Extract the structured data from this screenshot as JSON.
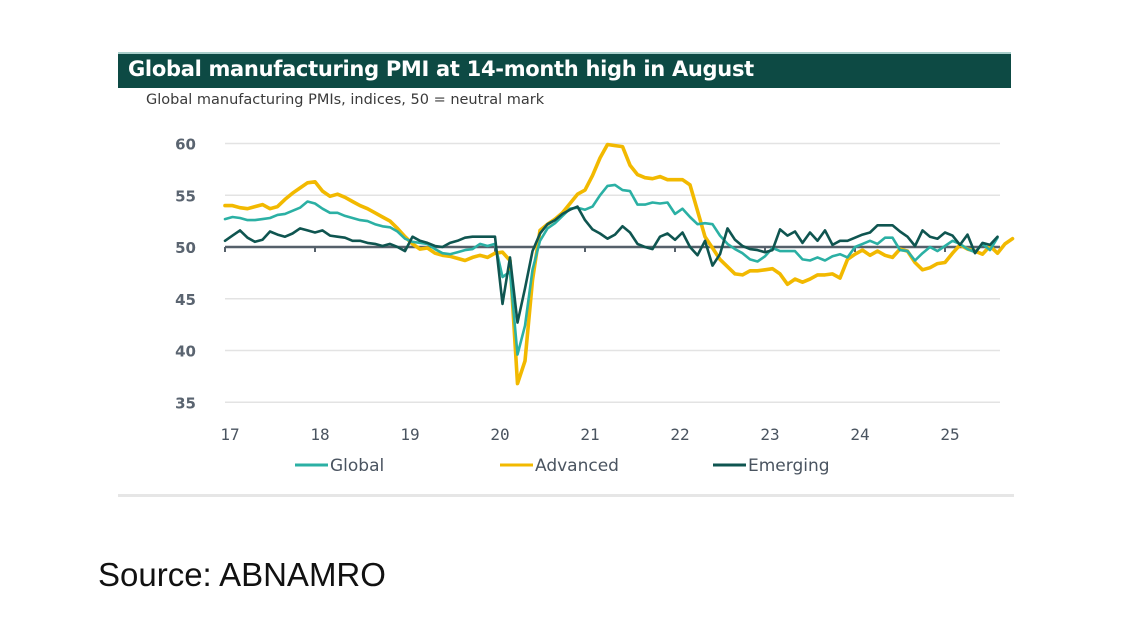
{
  "title": "Global manufacturing PMI at 14-month high in August",
  "subtitle": "Global manufacturing PMIs, indices, 50 = neutral mark",
  "source": "Source: ABNAMRO",
  "colors": {
    "title_bg": "#0d4a44",
    "global": "#2bb0a4",
    "advanced": "#f2b900",
    "emerging": "#0f5550",
    "neutral_line": "#55606a",
    "grid": "#e3e3e3"
  },
  "chart_data": {
    "type": "line",
    "title": "Global manufacturing PMI at 14-month high in August",
    "subtitle": "Global manufacturing PMIs, indices, 50 = neutral mark",
    "xlabel": "",
    "ylabel": "",
    "ylim": [
      35,
      60
    ],
    "yticks": [
      60,
      55,
      50,
      45,
      40,
      35
    ],
    "xticks": [
      "17",
      "18",
      "19",
      "20",
      "21",
      "22",
      "23",
      "24",
      "25"
    ],
    "x_start": "2017-01",
    "frequency": "monthly",
    "grid": true,
    "reference_line": 50,
    "legend": "bottom",
    "series": [
      {
        "name": "Global",
        "values": [
          52.7,
          52.9,
          52.8,
          52.6,
          52.6,
          52.7,
          52.8,
          53.1,
          53.2,
          53.5,
          53.8,
          54.4,
          54.2,
          53.7,
          53.3,
          53.3,
          53.0,
          52.8,
          52.6,
          52.5,
          52.2,
          52.0,
          51.9,
          51.5,
          50.8,
          50.5,
          50.4,
          50.3,
          49.8,
          49.4,
          49.3,
          49.5,
          49.7,
          49.8,
          50.3,
          50.1,
          50.3,
          47.1,
          47.6,
          39.6,
          42.4,
          47.8,
          50.6,
          51.8,
          52.3,
          53.0,
          53.7,
          53.8,
          53.6,
          53.9,
          55.0,
          55.9,
          56.0,
          55.5,
          55.4,
          54.1,
          54.1,
          54.3,
          54.2,
          54.3,
          53.2,
          53.7,
          52.9,
          52.2,
          52.3,
          52.2,
          51.1,
          50.3,
          49.8,
          49.4,
          48.8,
          48.6,
          49.1,
          49.9,
          49.6,
          49.6,
          49.6,
          48.8,
          48.7,
          49.0,
          48.7,
          49.1,
          49.3,
          49.0,
          50.0,
          50.3,
          50.6,
          50.3,
          50.9,
          50.9,
          49.7,
          49.6,
          48.7,
          49.4,
          50.0,
          49.6,
          50.1,
          50.6,
          50.3,
          49.8,
          49.5,
          50.3,
          49.7,
          50.9
        ]
      },
      {
        "name": "Advanced",
        "values": [
          54.0,
          54.0,
          53.8,
          53.7,
          53.9,
          54.1,
          53.7,
          53.9,
          54.6,
          55.2,
          55.7,
          56.2,
          56.3,
          55.4,
          54.9,
          55.1,
          54.8,
          54.4,
          54.0,
          53.7,
          53.3,
          52.9,
          52.5,
          51.8,
          51.0,
          50.3,
          49.8,
          49.9,
          49.4,
          49.2,
          49.1,
          48.9,
          48.7,
          49.0,
          49.2,
          49.0,
          49.4,
          49.5,
          48.7,
          36.8,
          39.0,
          46.8,
          51.6,
          52.2,
          52.7,
          53.3,
          54.2,
          55.1,
          55.5,
          56.9,
          58.6,
          59.9,
          59.8,
          59.7,
          57.9,
          57.0,
          56.7,
          56.6,
          56.8,
          56.5,
          56.5,
          56.5,
          56.0,
          53.5,
          51.0,
          49.9,
          48.8,
          48.1,
          47.4,
          47.3,
          47.7,
          47.7,
          47.8,
          47.9,
          47.4,
          46.4,
          46.9,
          46.6,
          46.9,
          47.3,
          47.3,
          47.4,
          47.0,
          48.8,
          49.3,
          49.7,
          49.2,
          49.6,
          49.2,
          49.0,
          49.8,
          49.6,
          48.5,
          47.8,
          48.0,
          48.4,
          48.5,
          49.4,
          50.2,
          49.8,
          49.6,
          49.3,
          50.1,
          49.4,
          50.3,
          50.8
        ]
      },
      {
        "name": "Emerging",
        "values": [
          50.6,
          51.1,
          51.6,
          50.9,
          50.5,
          50.7,
          51.5,
          51.2,
          51.0,
          51.3,
          51.8,
          51.6,
          51.4,
          51.6,
          51.1,
          51.0,
          50.9,
          50.6,
          50.6,
          50.4,
          50.3,
          50.1,
          50.3,
          50.0,
          49.6,
          51.0,
          50.6,
          50.4,
          50.1,
          50.0,
          50.4,
          50.6,
          50.9,
          51.0,
          51.0,
          51.0,
          51.0,
          44.5,
          49.0,
          42.7,
          46.0,
          49.6,
          51.3,
          52.2,
          52.6,
          53.2,
          53.6,
          53.9,
          52.6,
          51.7,
          51.3,
          50.8,
          51.2,
          52.0,
          51.4,
          50.3,
          50.0,
          49.8,
          51.0,
          51.3,
          50.7,
          51.4,
          50.0,
          49.2,
          50.6,
          48.2,
          49.3,
          51.8,
          50.7,
          50.1,
          49.8,
          49.7,
          49.5,
          49.7,
          51.7,
          51.1,
          51.5,
          50.4,
          51.4,
          50.6,
          51.6,
          50.2,
          50.6,
          50.6,
          50.9,
          51.2,
          51.4,
          52.1,
          52.1,
          52.1,
          51.5,
          51.0,
          50.1,
          51.6,
          51.0,
          50.8,
          51.4,
          51.1,
          50.2,
          51.2,
          49.4,
          50.4,
          50.2,
          51.0
        ]
      }
    ]
  }
}
